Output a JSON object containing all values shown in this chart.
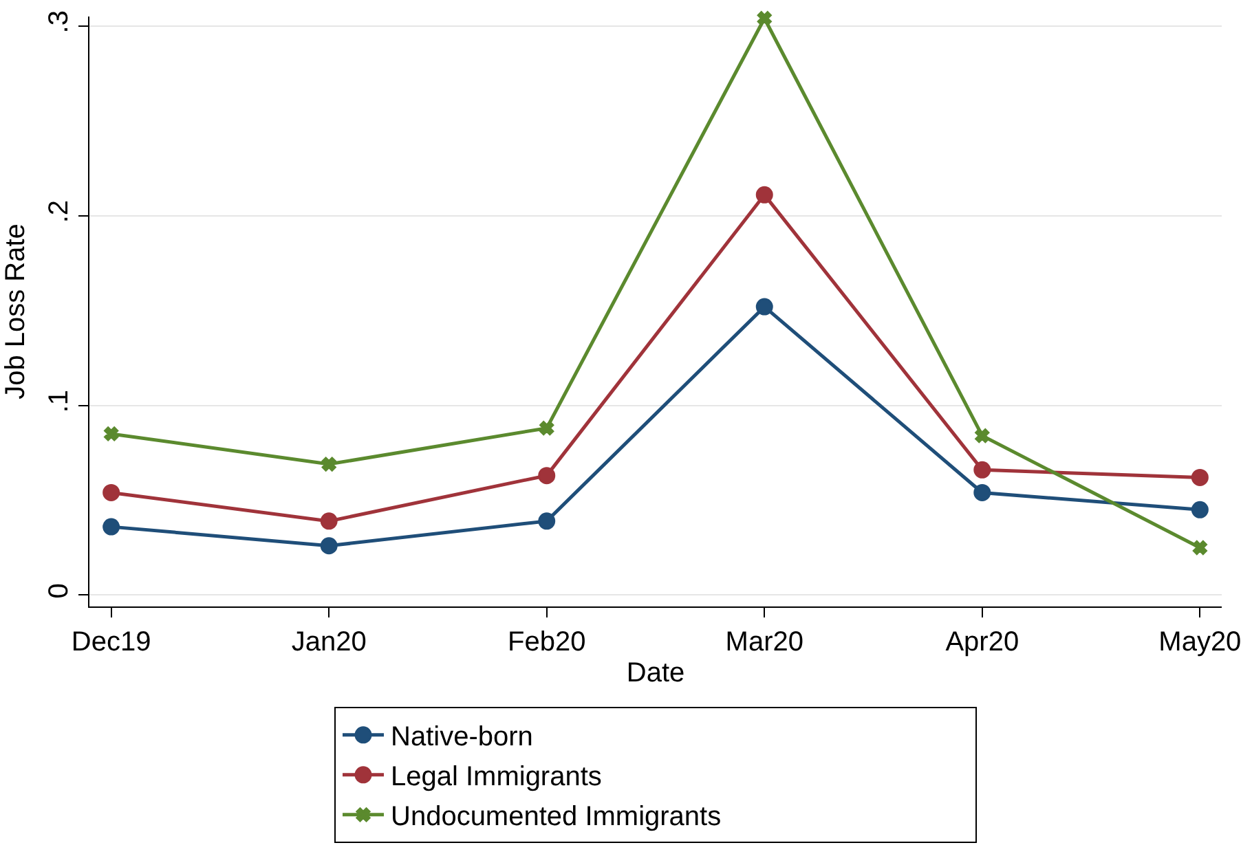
{
  "chart_data": {
    "type": "line",
    "xlabel": "Date",
    "ylabel": "Job Loss Rate",
    "categories": [
      "Dec19",
      "Jan20",
      "Feb20",
      "Mar20",
      "Apr20",
      "May20"
    ],
    "series": [
      {
        "name": "Native-born",
        "color": "#1f4e79",
        "marker": "circle",
        "values": [
          0.036,
          0.026,
          0.039,
          0.152,
          0.054,
          0.045
        ]
      },
      {
        "name": "Legal Immigrants",
        "color": "#a0333a",
        "marker": "circle",
        "values": [
          0.054,
          0.039,
          0.063,
          0.211,
          0.066,
          0.062
        ]
      },
      {
        "name": "Undocumented Immigrants",
        "color": "#5b8a2e",
        "marker": "cross",
        "values": [
          0.085,
          0.069,
          0.088,
          0.304,
          0.084,
          0.025
        ]
      }
    ],
    "ylim": [
      -0.006,
      0.305
    ],
    "yticks": [
      {
        "value": 0,
        "label": "0"
      },
      {
        "value": 0.1,
        "label": ".1"
      },
      {
        "value": 0.2,
        "label": ".2"
      },
      {
        "value": 0.3,
        "label": ".3"
      }
    ],
    "grid": "y",
    "legend": "bottom",
    "line_style": "solid"
  }
}
